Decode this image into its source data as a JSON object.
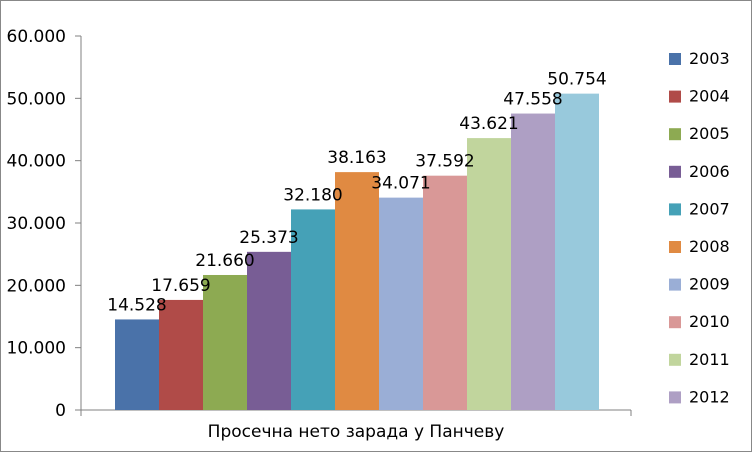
{
  "chart_data": {
    "type": "bar",
    "categories": [
      "Просечна нето зарада у Панчеву"
    ],
    "series": [
      {
        "name": "2003",
        "values": [
          14528
        ],
        "label": "14.528",
        "color": "#4a72a9"
      },
      {
        "name": "2004",
        "values": [
          17659
        ],
        "label": "17.659",
        "color": "#b04b48"
      },
      {
        "name": "2005",
        "values": [
          21660
        ],
        "label": "21.660",
        "color": "#8daa52"
      },
      {
        "name": "2006",
        "values": [
          25373
        ],
        "label": "25.373",
        "color": "#785d95"
      },
      {
        "name": "2007",
        "values": [
          32180
        ],
        "label": "32.180",
        "color": "#45a1b7"
      },
      {
        "name": "2008",
        "values": [
          38163
        ],
        "label": "38.163",
        "color": "#e08a42"
      },
      {
        "name": "2009",
        "values": [
          34071
        ],
        "label": "34.071",
        "color": "#9aaed6"
      },
      {
        "name": "2010",
        "values": [
          37592
        ],
        "label": "37.592",
        "color": "#d99897"
      },
      {
        "name": "2011",
        "values": [
          43621
        ],
        "label": "43.621",
        "color": "#c1d59d"
      },
      {
        "name": "2012",
        "values": [
          47558
        ],
        "label": "47.558",
        "color": "#ae9fc4"
      },
      {
        "name": "",
        "values": [
          50754
        ],
        "label": "50.754",
        "color": "#98c9dc"
      }
    ],
    "ylim": [
      0,
      60000
    ],
    "yticks": [
      {
        "value": 0,
        "label": "0"
      },
      {
        "value": 10000,
        "label": "10.000"
      },
      {
        "value": 20000,
        "label": "20.000"
      },
      {
        "value": 30000,
        "label": "30.000"
      },
      {
        "value": 40000,
        "label": "40.000"
      },
      {
        "value": 50000,
        "label": "50.000"
      },
      {
        "value": 60000,
        "label": "60.000"
      }
    ],
    "grid": false,
    "legend_position": "right"
  }
}
